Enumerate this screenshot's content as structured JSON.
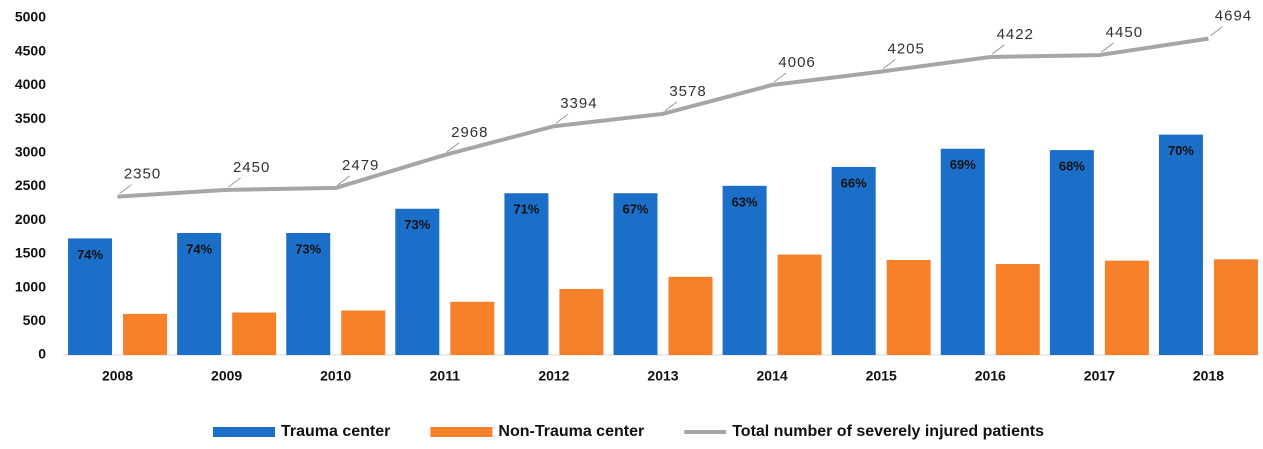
{
  "chart_data": {
    "type": "bar-line",
    "categories": [
      "2008",
      "2009",
      "2010",
      "2011",
      "2012",
      "2013",
      "2014",
      "2015",
      "2016",
      "2017",
      "2018"
    ],
    "series": [
      {
        "name": "Trauma center",
        "type": "bar",
        "color": "#1c6fc8",
        "values": [
          1730,
          1810,
          1810,
          2170,
          2400,
          2400,
          2510,
          2790,
          3060,
          3040,
          3270
        ],
        "percent_labels": [
          "74%",
          "74%",
          "73%",
          "73%",
          "71%",
          "67%",
          "63%",
          "66%",
          "69%",
          "68%",
          "70%"
        ]
      },
      {
        "name": "Non-Trauma center",
        "type": "bar",
        "color": "#f7802a",
        "values": [
          610,
          630,
          660,
          790,
          980,
          1160,
          1490,
          1410,
          1350,
          1400,
          1420
        ]
      },
      {
        "name": "Total number of severely injured patients",
        "type": "line",
        "color": "#a6a6a6",
        "values": [
          2350,
          2450,
          2479,
          2968,
          3394,
          3578,
          4006,
          4205,
          4422,
          4450,
          4694
        ]
      }
    ],
    "ylim": [
      0,
      5000
    ],
    "yticks": [
      0,
      500,
      1000,
      1500,
      2000,
      2500,
      3000,
      3500,
      4000,
      4500,
      5000
    ]
  }
}
